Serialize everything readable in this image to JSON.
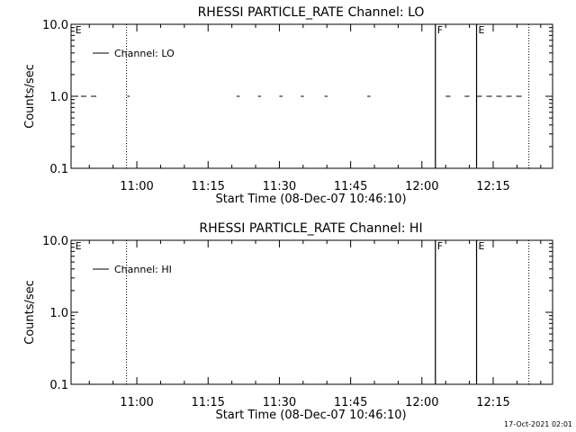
{
  "timestamp": "17-Oct-2021 02:01",
  "chart_data": [
    {
      "type": "line",
      "title": "RHESSI PARTICLE_RATE Channel: LO",
      "xlabel": "Start Time (08-Dec-07 10:46:10)",
      "ylabel": "Counts/sec",
      "yscale": "log",
      "ylim": [
        0.1,
        10.0
      ],
      "xlim": [
        "10:46:10",
        "12:27:30"
      ],
      "ytick_labels": [
        "0.1",
        "1.0",
        "10.0"
      ],
      "xtick_labels": [
        "11:00",
        "11:15",
        "11:30",
        "11:45",
        "12:00",
        "12:15"
      ],
      "legend": {
        "position": "top-left",
        "entries": [
          "Channel: LO"
        ]
      },
      "series": [
        {
          "name": "Channel: LO",
          "style": "dashed segments",
          "segments": [
            [
              "10:46:10",
              "10:52:00"
            ],
            [
              "10:58:00",
              "10:58:30"
            ],
            [
              "11:21:00",
              "11:21:40"
            ],
            [
              "11:25:30",
              "11:26:10"
            ],
            [
              "11:30:00",
              "11:30:40"
            ],
            [
              "11:34:30",
              "11:35:10"
            ],
            [
              "11:39:30",
              "11:40:10"
            ],
            [
              "11:48:30",
              "11:49:10"
            ],
            [
              "12:05:00",
              "12:06:00"
            ],
            [
              "12:09:00",
              "12:10:00"
            ],
            [
              "12:11:30",
              "12:21:00"
            ]
          ],
          "y": 1.0
        }
      ],
      "markers": [
        {
          "time": "10:46:40",
          "label": "E",
          "style": "none"
        },
        {
          "time": "10:57:50",
          "label": "",
          "style": "dotted"
        },
        {
          "time": "12:02:50",
          "label": "F",
          "style": "solid"
        },
        {
          "time": "12:11:30",
          "label": "E",
          "style": "solid"
        },
        {
          "time": "12:22:30",
          "label": "",
          "style": "dotted"
        }
      ]
    },
    {
      "type": "line",
      "title": "RHESSI PARTICLE_RATE Channel: HI",
      "xlabel": "Start Time (08-Dec-07 10:46:10)",
      "ylabel": "Counts/sec",
      "yscale": "log",
      "ylim": [
        0.1,
        10.0
      ],
      "xlim": [
        "10:46:10",
        "12:27:30"
      ],
      "ytick_labels": [
        "0.1",
        "1.0",
        "10.0"
      ],
      "xtick_labels": [
        "11:00",
        "11:15",
        "11:30",
        "11:45",
        "12:00",
        "12:15"
      ],
      "legend": {
        "position": "top-left",
        "entries": [
          "Channel: HI"
        ]
      },
      "series": [
        {
          "name": "Channel: HI",
          "style": "solid",
          "segments": [],
          "y": 1.0
        }
      ],
      "markers": [
        {
          "time": "10:46:40",
          "label": "E",
          "style": "none"
        },
        {
          "time": "10:57:50",
          "label": "",
          "style": "dotted"
        },
        {
          "time": "12:02:50",
          "label": "F",
          "style": "solid"
        },
        {
          "time": "12:11:30",
          "label": "E",
          "style": "solid"
        },
        {
          "time": "12:22:30",
          "label": "",
          "style": "dotted"
        }
      ]
    }
  ]
}
